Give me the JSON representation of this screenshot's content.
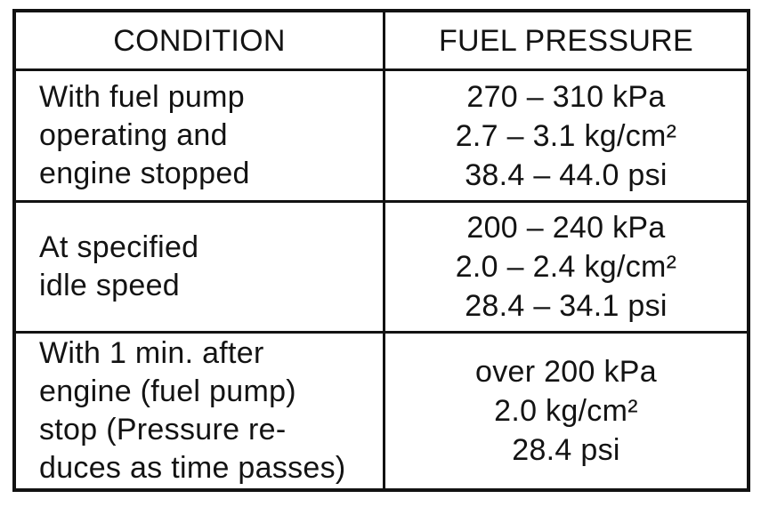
{
  "colors": {
    "ink": "#121212",
    "paper": "#ffffff"
  },
  "table": {
    "headers": {
      "condition": "CONDITION",
      "fuel_pressure": "FUEL PRESSURE"
    },
    "rows": [
      {
        "condition_lines": [
          "With fuel pump",
          "operating and",
          "engine stopped"
        ],
        "pressure_lines": [
          "270 – 310 kPa",
          "2.7 – 3.1 kg/cm²",
          "38.4 – 44.0 psi"
        ]
      },
      {
        "condition_lines": [
          "At specified",
          "idle speed"
        ],
        "pressure_lines": [
          "200 – 240 kPa",
          "2.0 – 2.4 kg/cm²",
          "28.4 – 34.1 psi"
        ]
      },
      {
        "condition_lines": [
          "With 1 min. after",
          "engine (fuel pump)",
          "stop (Pressure re-",
          "duces as time passes)"
        ],
        "pressure_lines": [
          "over 200 kPa",
          "2.0 kg/cm²",
          "28.4 psi"
        ]
      }
    ]
  }
}
